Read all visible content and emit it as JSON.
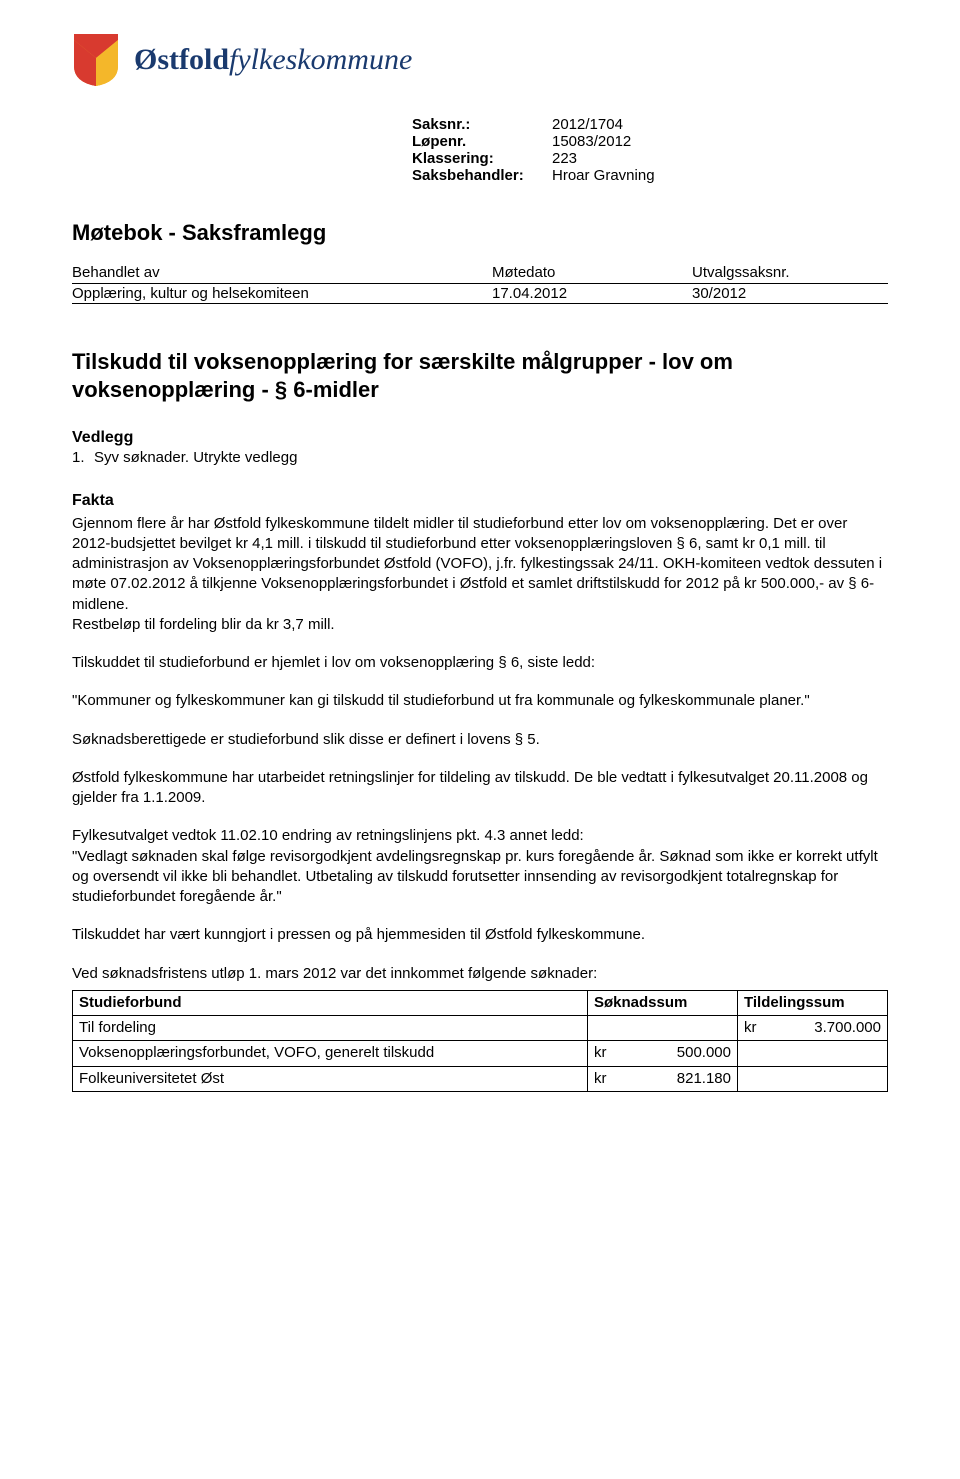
{
  "org_name_bold": "Østfold",
  "org_name_ital": "fylkeskommune",
  "logo_colors": {
    "red": "#d83a2f",
    "yellow": "#f4b72a",
    "blue": "#1a3a6e"
  },
  "meta": {
    "saksnr_label": "Saksnr.:",
    "saksnr": "2012/1704",
    "lopenr_label": "Løpenr.",
    "lopenr": "15083/2012",
    "klass_label": "Klassering:",
    "klass": "223",
    "saksbeh_label": "Saksbehandler:",
    "saksbeh": "Hroar Gravning"
  },
  "doc_title": "Møtebok - Saksframlegg",
  "proc": {
    "h1": "Behandlet av",
    "h2": "Møtedato",
    "h3": "Utvalgssaksnr.",
    "r1c1": "Opplæring, kultur og helsekomiteen",
    "r1c2": "17.04.2012",
    "r1c3": "30/2012"
  },
  "case_title": "Tilskudd til voksenopplæring for særskilte målgrupper - lov om voksenopplæring - § 6-midler",
  "vedlegg_h": "Vedlegg",
  "vedlegg_num": "1.",
  "vedlegg_text": "Syv søknader. Utrykte vedlegg",
  "fakta_h": "Fakta",
  "p1": "Gjennom flere år har Østfold fylkeskommune tildelt midler til studieforbund etter lov om voksenopplæring. Det er over 2012-budsjettet bevilget kr 4,1 mill. i tilskudd til studieforbund etter voksenopplæringsloven § 6, samt kr 0,1 mill. til administrasjon av Voksenopplæringsforbundet Østfold (VOFO), j.fr. fylkestingssak 24/11. OKH-komiteen vedtok dessuten i møte 07.02.2012 å tilkjenne Voksenopplæringsforbundet i Østfold et samlet driftstilskudd for 2012 på kr 500.000,- av § 6-midlene.",
  "p1b": "Restbeløp til fordeling blir da kr 3,7 mill.",
  "p2": "Tilskuddet til studieforbund er hjemlet i lov om voksenopplæring § 6, siste ledd:",
  "p3": "\"Kommuner og fylkeskommuner kan gi tilskudd til studieforbund ut fra kommunale og fylkeskommunale planer.\"",
  "p4": "Søknadsberettigede er studieforbund slik disse er definert i lovens § 5.",
  "p5": "Østfold fylkeskommune har utarbeidet retningslinjer for tildeling av tilskudd. De ble vedtatt i fylkesutvalget 20.11.2008 og gjelder fra 1.1.2009.",
  "p6a": "Fylkesutvalget vedtok 11.02.10 endring av retningslinjens pkt. 4.3 annet ledd:",
  "p6b": "\"Vedlagt søknaden skal følge revisorgodkjent avdelingsregnskap pr. kurs foregående år. Søknad som ikke er korrekt utfylt og oversendt vil ikke bli behandlet. Utbetaling av tilskudd forutsetter innsending av revisorgodkjent totalregnskap for studieforbundet foregående år.\"",
  "p7": "Tilskuddet har vært kunngjort i pressen og på hjemmesiden til Østfold fylkeskommune.",
  "p8": "Ved søknadsfristens utløp 1. mars 2012 var det innkommet følgende søknader:",
  "table": {
    "h1": "Studieforbund",
    "h2": "Søknadssum",
    "h3": "Tildelingssum",
    "rows": [
      {
        "name": "Til fordeling",
        "sok_kr": "",
        "sok_val": "",
        "til_kr": "kr",
        "til_val": "3.700.000"
      },
      {
        "name": "Voksenopplæringsforbundet, VOFO, generelt tilskudd",
        "sok_kr": "kr",
        "sok_val": "500.000",
        "til_kr": "",
        "til_val": ""
      },
      {
        "name": "Folkeuniversitetet Øst",
        "sok_kr": "kr",
        "sok_val": "821.180",
        "til_kr": "",
        "til_val": ""
      }
    ]
  }
}
